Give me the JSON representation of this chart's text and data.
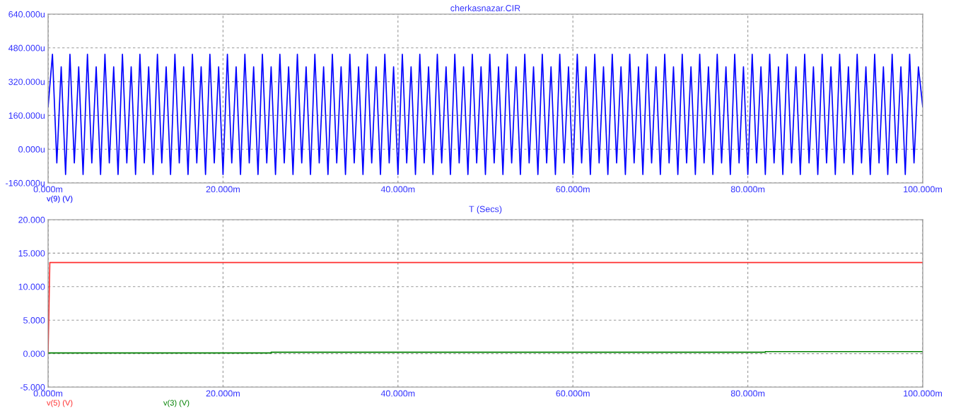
{
  "chart_data": [
    {
      "type": "line",
      "title": "cherkasnazar.CIR",
      "xlabel": "T (Secs)",
      "xlim": [
        0,
        100
      ],
      "xticks": [
        {
          "value": 0,
          "label": "0.000m"
        },
        {
          "value": 20,
          "label": "20.000m"
        },
        {
          "value": 40,
          "label": "40.000m"
        },
        {
          "value": 60,
          "label": "60.000m"
        },
        {
          "value": 80,
          "label": "80.000m"
        },
        {
          "value": 100,
          "label": "100.000m"
        }
      ],
      "ylim": [
        -160,
        640
      ],
      "yticks": [
        {
          "value": -160,
          "label": "-160.000u"
        },
        {
          "value": 0,
          "label": "0.000u"
        },
        {
          "value": 160,
          "label": "160.000u"
        },
        {
          "value": 320,
          "label": "320.000u"
        },
        {
          "value": 480,
          "label": "480.000u"
        },
        {
          "value": 640,
          "label": "640.000u"
        }
      ],
      "grid": true,
      "line_style": "solid",
      "x": [
        0,
        0.5,
        1,
        1.5,
        2,
        2.5,
        3,
        3.5,
        4,
        4.5,
        5,
        5.5,
        6,
        6.5,
        7,
        7.5,
        8,
        8.5,
        9,
        9.5,
        10,
        10.5,
        11,
        11.5,
        12,
        12.5,
        13,
        13.5,
        14,
        14.5,
        15,
        15.5,
        16,
        16.5,
        17,
        17.5,
        18,
        18.5,
        19,
        19.5,
        20,
        20.5,
        21,
        21.5,
        22,
        22.5,
        23,
        23.5,
        24,
        24.5,
        25,
        25.5,
        26,
        26.5,
        27,
        27.5,
        28,
        28.5,
        29,
        29.5,
        30,
        30.5,
        31,
        31.5,
        32,
        32.5,
        33,
        33.5,
        34,
        34.5,
        35,
        35.5,
        36,
        36.5,
        37,
        37.5,
        38,
        38.5,
        39,
        39.5,
        40,
        40.5,
        41,
        41.5,
        42,
        42.5,
        43,
        43.5,
        44,
        44.5,
        45,
        45.5,
        46,
        46.5,
        47,
        47.5,
        48,
        48.5,
        49,
        49.5,
        50,
        50.5,
        51,
        51.5,
        52,
        52.5,
        53,
        53.5,
        54,
        54.5,
        55,
        55.5,
        56,
        56.5,
        57,
        57.5,
        58,
        58.5,
        59,
        59.5,
        60,
        60.5,
        61,
        61.5,
        62,
        62.5,
        63,
        63.5,
        64,
        64.5,
        65,
        65.5,
        66,
        66.5,
        67,
        67.5,
        68,
        68.5,
        69,
        69.5,
        70,
        70.5,
        71,
        71.5,
        72,
        72.5,
        73,
        73.5,
        74,
        74.5,
        75,
        75.5,
        76,
        76.5,
        77,
        77.5,
        78,
        78.5,
        79,
        79.5,
        80,
        80.5,
        81,
        81.5,
        82,
        82.5,
        83,
        83.5,
        84,
        84.5,
        85,
        85.5,
        86,
        86.5,
        87,
        87.5,
        88,
        88.5,
        89,
        89.5,
        90,
        90.5,
        91,
        91.5,
        92,
        92.5,
        93,
        93.5,
        94,
        94.5,
        95,
        95.5,
        96,
        96.5,
        97,
        97.5,
        98,
        98.5,
        99,
        99.5,
        100
      ],
      "series": [
        {
          "name": "v(9) (V)",
          "color": "#0000ff",
          "values": [
            200,
            450,
            -65,
            390,
            -120,
            450,
            -65,
            390,
            -120,
            450,
            -65,
            390,
            -120,
            450,
            -65,
            390,
            -120,
            450,
            -65,
            390,
            -120,
            450,
            -65,
            390,
            -120,
            450,
            -65,
            390,
            -120,
            450,
            -65,
            390,
            -120,
            450,
            -65,
            390,
            -120,
            450,
            -65,
            390,
            -120,
            450,
            -65,
            390,
            -120,
            450,
            -65,
            390,
            -120,
            450,
            -65,
            390,
            -120,
            450,
            -65,
            390,
            -120,
            450,
            -65,
            390,
            -120,
            450,
            -65,
            390,
            -120,
            450,
            -65,
            390,
            -120,
            450,
            -65,
            390,
            -120,
            450,
            -65,
            390,
            -120,
            450,
            -65,
            390,
            -120,
            450,
            -65,
            390,
            -120,
            450,
            -65,
            390,
            -120,
            450,
            -65,
            390,
            -120,
            450,
            -65,
            390,
            -120,
            450,
            -65,
            390,
            -120,
            450,
            -65,
            390,
            -120,
            450,
            -65,
            390,
            -120,
            450,
            -65,
            390,
            -120,
            450,
            -65,
            390,
            -120,
            450,
            -65,
            390,
            -120,
            450,
            -65,
            390,
            -120,
            450,
            -65,
            390,
            -120,
            450,
            -65,
            390,
            -120,
            450,
            -65,
            390,
            -120,
            450,
            -65,
            390,
            -120,
            450,
            -65,
            390,
            -120,
            450,
            -65,
            390,
            -120,
            450,
            -65,
            390,
            -120,
            450,
            -65,
            390,
            -120,
            450,
            -65,
            390,
            -120,
            450,
            -65,
            390,
            -120,
            450,
            -65,
            390,
            -120,
            450,
            -65,
            390,
            -120,
            450,
            -65,
            390,
            -120,
            450,
            -65,
            390,
            -120,
            450,
            -65,
            390,
            -120,
            450,
            -65,
            390,
            -120,
            450,
            -65,
            390,
            -120,
            450,
            -65,
            390,
            -120,
            450,
            -65,
            390,
            200
          ]
        }
      ]
    },
    {
      "type": "line",
      "xlim": [
        0,
        100
      ],
      "xticks": [
        {
          "value": 0,
          "label": "0.000m"
        },
        {
          "value": 20,
          "label": "20.000m"
        },
        {
          "value": 40,
          "label": "40.000m"
        },
        {
          "value": 60,
          "label": "60.000m"
        },
        {
          "value": 80,
          "label": "80.000m"
        },
        {
          "value": 100,
          "label": "100.000m"
        }
      ],
      "ylim": [
        -5,
        20
      ],
      "yticks": [
        {
          "value": -5,
          "label": "-5.000"
        },
        {
          "value": 0,
          "label": "0.000"
        },
        {
          "value": 5,
          "label": "5.000"
        },
        {
          "value": 10,
          "label": "10.000"
        },
        {
          "value": 15,
          "label": "15.000"
        },
        {
          "value": 20,
          "label": "20.000"
        }
      ],
      "grid": true,
      "line_style": "solid",
      "series": [
        {
          "name": "v(5) (V)",
          "color": "#ff3030",
          "x": [
            0,
            0.2,
            100
          ],
          "values": [
            0,
            13.6,
            13.6
          ]
        },
        {
          "name": "v(3) (V)",
          "type": "step",
          "color": "#008000",
          "x": [
            0,
            25.5,
            82,
            100
          ],
          "values": [
            0.1,
            0.2,
            0.3,
            0.3
          ]
        }
      ]
    }
  ]
}
